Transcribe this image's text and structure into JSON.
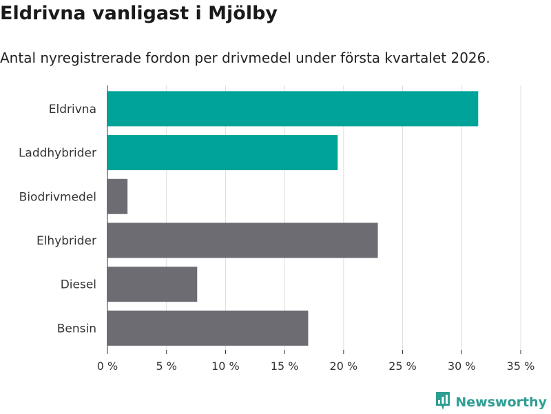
{
  "title": "Eldrivna vanligast i Mjölby",
  "subtitle": "Antal nyregistrerade fordon per drivmedel under första kvartalet 2026.",
  "brand": {
    "name": "Newsworthy",
    "icon": "newsworthy-logo-icon",
    "color": "#2f9e93"
  },
  "colors": {
    "highlight": "#00a398",
    "default": "#6d6c73",
    "grid": "#dddddd",
    "axis": "#333333"
  },
  "chart_data": {
    "type": "bar",
    "orientation": "horizontal",
    "categories": [
      "Eldrivna",
      "Laddhybrider",
      "Biodrivmedel",
      "Elhybrider",
      "Diesel",
      "Bensin"
    ],
    "values": [
      31.4,
      19.5,
      1.7,
      22.9,
      7.6,
      17.0
    ],
    "highlighted": [
      true,
      true,
      false,
      false,
      false,
      false
    ],
    "xlim": [
      0,
      35
    ],
    "xticks": [
      0,
      5,
      10,
      15,
      20,
      25,
      30,
      35
    ],
    "xtick_labels": [
      "0 %",
      "5 %",
      "10 %",
      "15 %",
      "20 %",
      "25 %",
      "30 %",
      "35 %"
    ],
    "grid": "vertical",
    "xlabel": "",
    "ylabel": ""
  }
}
